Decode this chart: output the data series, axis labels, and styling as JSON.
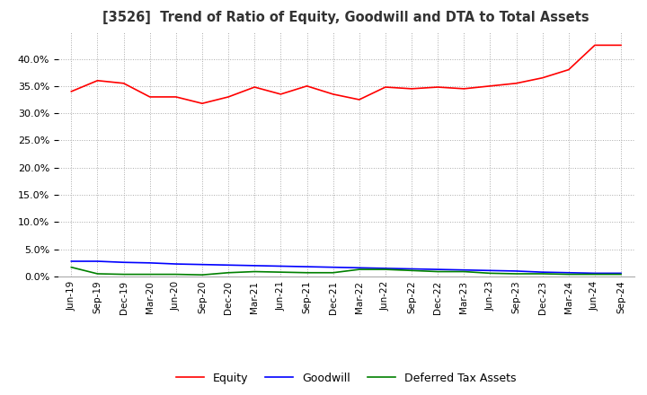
{
  "title": "[3526]  Trend of Ratio of Equity, Goodwill and DTA to Total Assets",
  "x_labels": [
    "Jun-19",
    "Sep-19",
    "Dec-19",
    "Mar-20",
    "Jun-20",
    "Sep-20",
    "Dec-20",
    "Mar-21",
    "Jun-21",
    "Sep-21",
    "Dec-21",
    "Mar-22",
    "Jun-22",
    "Sep-22",
    "Dec-22",
    "Mar-23",
    "Jun-23",
    "Sep-23",
    "Dec-23",
    "Mar-24",
    "Jun-24",
    "Sep-24"
  ],
  "equity": [
    34.0,
    36.0,
    35.5,
    33.0,
    33.0,
    31.8,
    33.0,
    34.8,
    33.5,
    35.0,
    33.5,
    32.5,
    34.8,
    34.5,
    34.8,
    34.5,
    35.0,
    35.5,
    36.5,
    38.0,
    42.5,
    42.5
  ],
  "goodwill": [
    2.8,
    2.8,
    2.6,
    2.5,
    2.3,
    2.2,
    2.1,
    2.0,
    1.9,
    1.8,
    1.7,
    1.6,
    1.5,
    1.4,
    1.3,
    1.2,
    1.1,
    1.0,
    0.8,
    0.7,
    0.6,
    0.6
  ],
  "dta": [
    1.7,
    0.5,
    0.4,
    0.4,
    0.4,
    0.3,
    0.7,
    0.9,
    0.8,
    0.7,
    0.7,
    1.3,
    1.3,
    1.1,
    0.9,
    0.9,
    0.6,
    0.5,
    0.5,
    0.4,
    0.4,
    0.4
  ],
  "equity_color": "#ff0000",
  "goodwill_color": "#0000ff",
  "dta_color": "#008000",
  "ylim": [
    0.0,
    45.0
  ],
  "yticks": [
    0.0,
    5.0,
    10.0,
    15.0,
    20.0,
    25.0,
    30.0,
    35.0,
    40.0
  ],
  "background_color": "#ffffff",
  "grid_color": "#aaaaaa",
  "legend_labels": [
    "Equity",
    "Goodwill",
    "Deferred Tax Assets"
  ]
}
